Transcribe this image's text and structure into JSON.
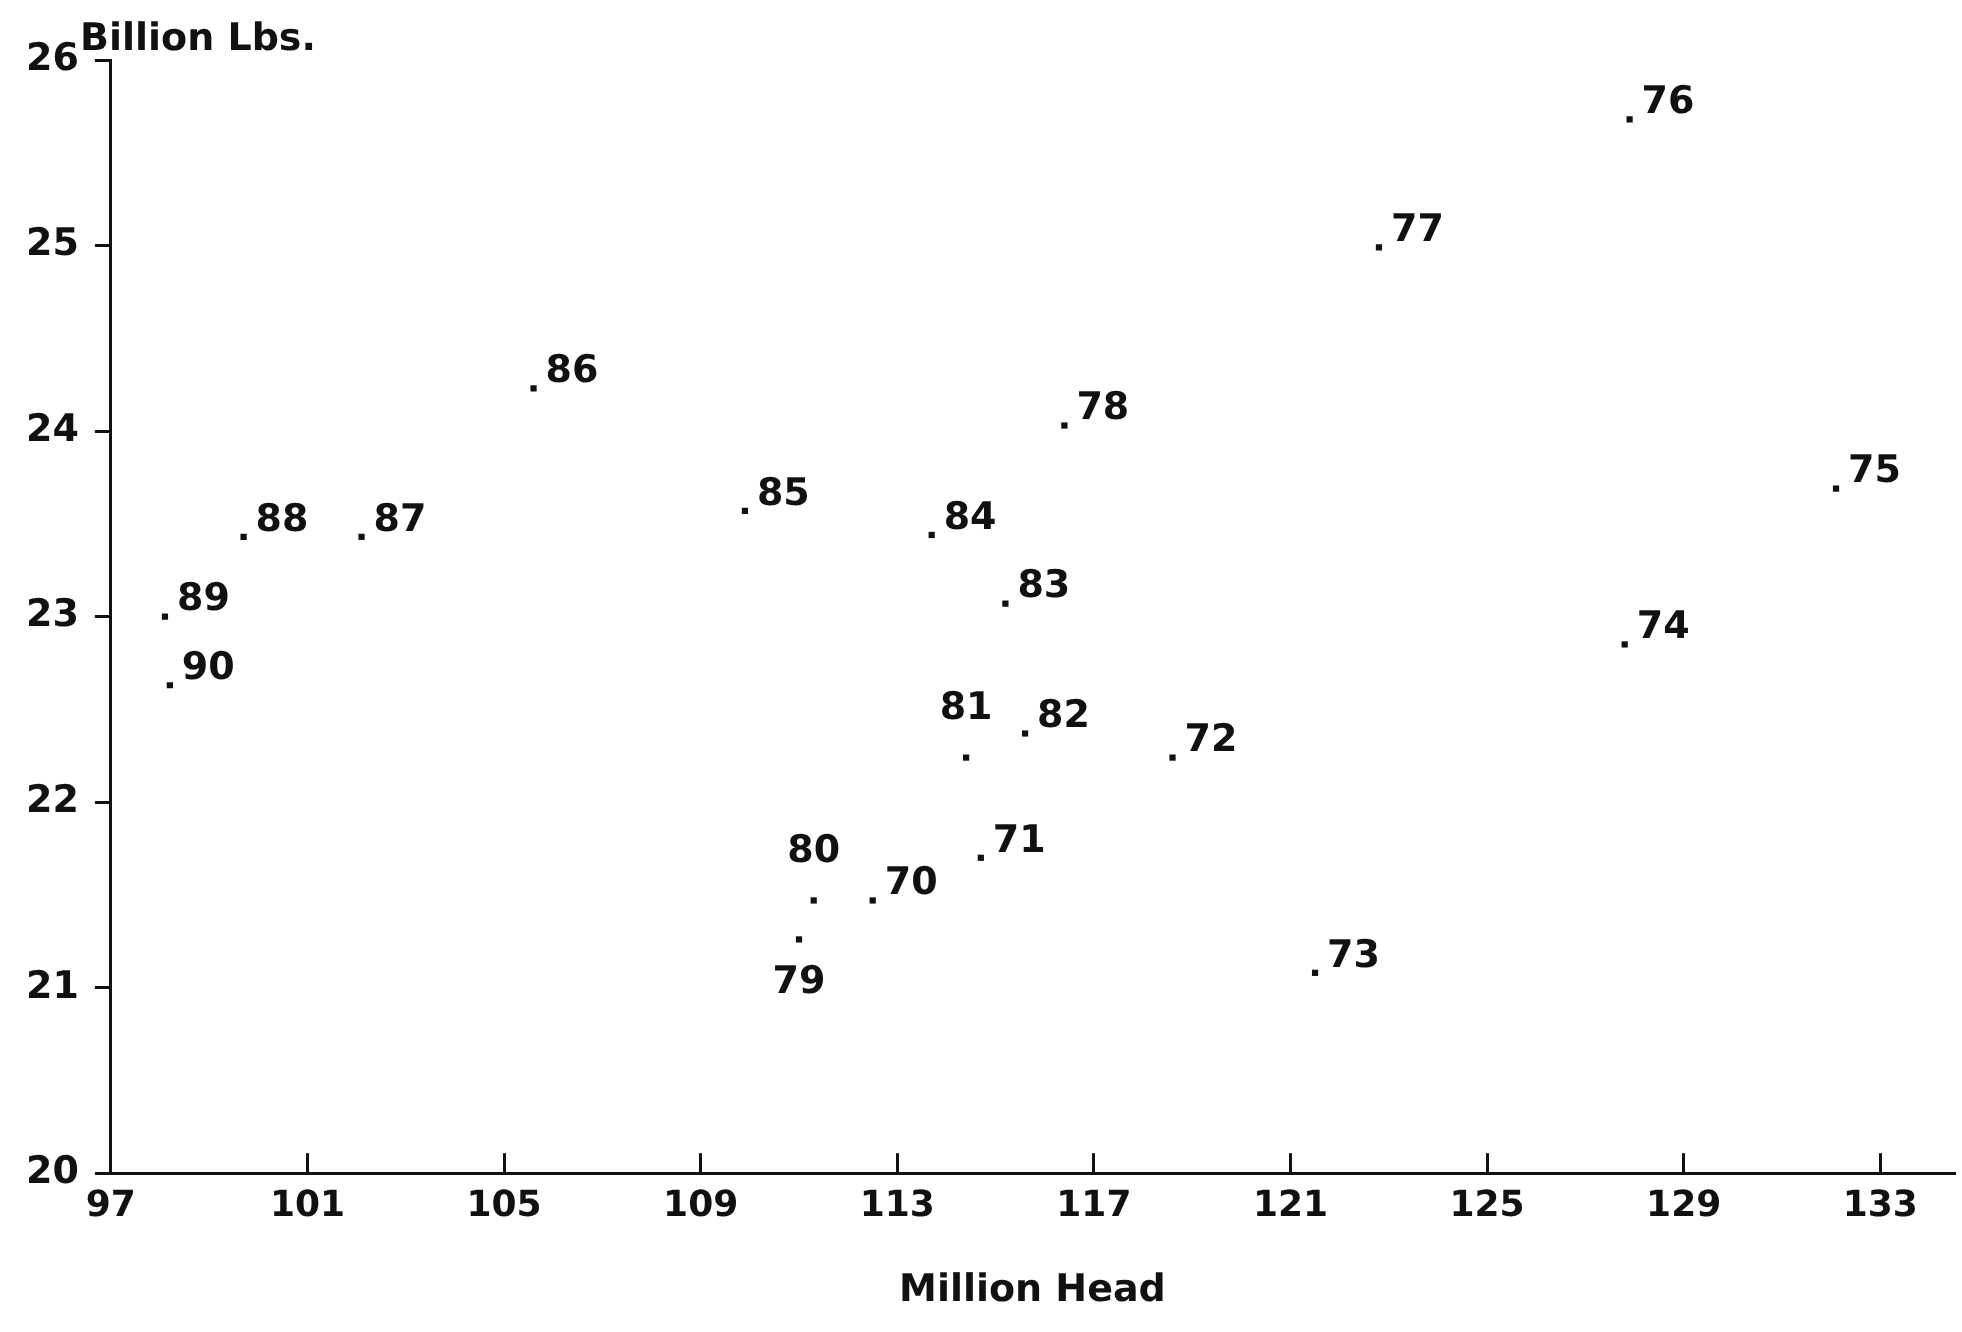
{
  "chart_data": {
    "type": "scatter",
    "xlabel": "Million Head",
    "ylabel": "Billion Lbs.",
    "x": [
      112.5,
      114.7,
      118.6,
      121.5,
      127.8,
      132.1,
      127.9,
      122.8,
      116.4,
      111.0,
      111.3,
      114.4,
      115.6,
      115.2,
      113.7,
      109.9,
      105.6,
      102.1,
      99.7,
      98.1,
      98.2
    ],
    "values": [
      21.47,
      21.7,
      22.24,
      21.08,
      22.85,
      23.69,
      25.68,
      24.99,
      24.03,
      21.26,
      21.47,
      22.24,
      22.37,
      23.07,
      23.44,
      23.57,
      24.23,
      23.43,
      23.43,
      23.0,
      22.63
    ],
    "annotations": [
      {
        "text": "70",
        "x": 112.5,
        "y": 21.47
      },
      {
        "text": "71",
        "x": 114.7,
        "y": 21.7
      },
      {
        "text": "72",
        "x": 118.6,
        "y": 22.24
      },
      {
        "text": "73",
        "x": 121.5,
        "y": 21.08
      },
      {
        "text": "74",
        "x": 127.8,
        "y": 22.85
      },
      {
        "text": "75",
        "x": 132.1,
        "y": 23.69
      },
      {
        "text": "76",
        "x": 127.9,
        "y": 25.68
      },
      {
        "text": "77",
        "x": 122.8,
        "y": 24.99
      },
      {
        "text": "78",
        "x": 116.4,
        "y": 24.03
      },
      {
        "text": "79",
        "x": 111.0,
        "y": 21.26
      },
      {
        "text": "80",
        "x": 111.3,
        "y": 21.47
      },
      {
        "text": "81",
        "x": 114.4,
        "y": 22.24
      },
      {
        "text": "82",
        "x": 115.6,
        "y": 22.37
      },
      {
        "text": "83",
        "x": 115.2,
        "y": 23.07
      },
      {
        "text": "84",
        "x": 113.7,
        "y": 23.44
      },
      {
        "text": "85",
        "x": 109.9,
        "y": 23.57
      },
      {
        "text": "86",
        "x": 105.6,
        "y": 24.23
      },
      {
        "text": "87",
        "x": 102.1,
        "y": 23.43
      },
      {
        "text": "88",
        "x": 99.7,
        "y": 23.43
      },
      {
        "text": "89",
        "x": 98.1,
        "y": 23.0
      },
      {
        "text": "90",
        "x": 98.2,
        "y": 22.63
      }
    ],
    "color": "#111111",
    "marker": "square",
    "grid": false,
    "legend": false,
    "xlim": [
      97,
      134.5
    ],
    "xticks": [
      97,
      101,
      105,
      109,
      113,
      117,
      121,
      125,
      129,
      133
    ],
    "ylim": [
      20,
      26
    ],
    "yticks": [
      20,
      21,
      22,
      23,
      24,
      25,
      26
    ]
  }
}
